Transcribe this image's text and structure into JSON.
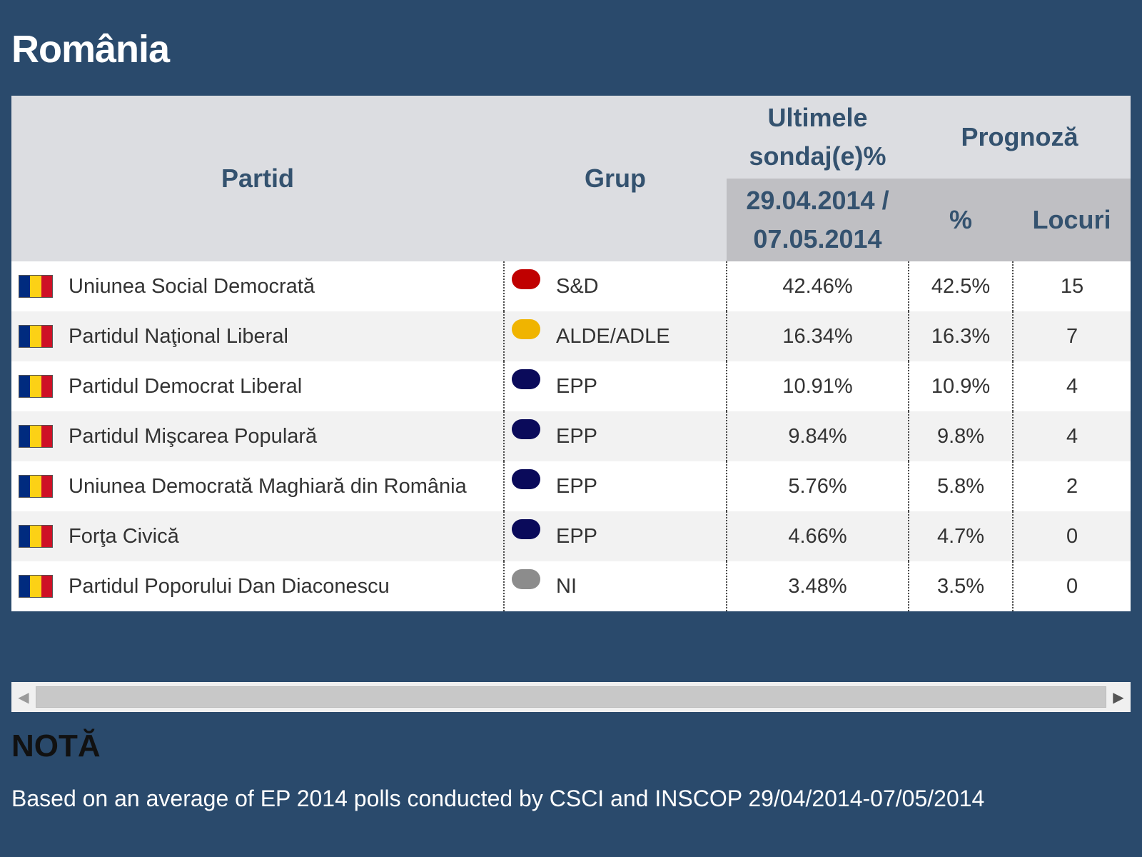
{
  "title": "România",
  "table": {
    "headers": {
      "party": "Partid",
      "group": "Grup",
      "polls": "Ultimele sondaj(e)%",
      "polls_dates": "29.04.2014 / 07.05.2014",
      "forecast": "Prognoză",
      "forecast_pct": "%",
      "forecast_seats": "Locuri"
    },
    "rows": [
      {
        "party": "Uniunea Social Democrată",
        "group": "S&D",
        "group_color": "#c00000",
        "poll": "42.46%",
        "pct": "42.5%",
        "seats": "15"
      },
      {
        "party": "Partidul Naţional Liberal",
        "group": "ALDE/ADLE",
        "group_color": "#f0b400",
        "poll": "16.34%",
        "pct": "16.3%",
        "seats": "7"
      },
      {
        "party": "Partidul Democrat Liberal",
        "group": "EPP",
        "group_color": "#0a0a5a",
        "poll": "10.91%",
        "pct": "10.9%",
        "seats": "4"
      },
      {
        "party": "Partidul Mişcarea Populară",
        "group": "EPP",
        "group_color": "#0a0a5a",
        "poll": "9.84%",
        "pct": "9.8%",
        "seats": "4"
      },
      {
        "party": "Uniunea Democrată Maghiară din România",
        "group": "EPP",
        "group_color": "#0a0a5a",
        "poll": "5.76%",
        "pct": "5.8%",
        "seats": "2"
      },
      {
        "party": "Forţa Civică",
        "group": "EPP",
        "group_color": "#0a0a5a",
        "poll": "4.66%",
        "pct": "4.7%",
        "seats": "0"
      },
      {
        "party": "Partidul Poporului Dan Diaconescu",
        "group": "NI",
        "group_color": "#8c8c8c",
        "poll": "3.48%",
        "pct": "3.5%",
        "seats": "0"
      }
    ]
  },
  "flag_colors": [
    "#002b7f",
    "#fcd116",
    "#ce1126"
  ],
  "scrollbar": {
    "left_icon": "scroll-left-arrow-icon",
    "right_icon": "scroll-right-arrow-icon"
  },
  "note": {
    "title": "NOTĂ",
    "text": "Based on an average of EP 2014 polls conducted by CSCI and INSCOP 29/04/2014-07/05/2014"
  }
}
